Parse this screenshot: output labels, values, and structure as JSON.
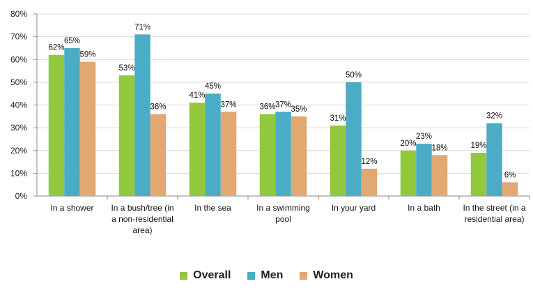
{
  "chart_data": {
    "type": "bar",
    "categories": [
      [
        "In a shower"
      ],
      [
        "In a bush/tree (in",
        "a non-residential",
        "area)"
      ],
      [
        "In the sea"
      ],
      [
        "In a swimming",
        "pool"
      ],
      [
        "In your yard"
      ],
      [
        "In a bath"
      ],
      [
        "In the street (in a",
        "residential area)"
      ]
    ],
    "series": [
      {
        "name": "Overall",
        "color": "#92c83e",
        "values": [
          62,
          53,
          41,
          36,
          31,
          20,
          19
        ]
      },
      {
        "name": "Men",
        "color": "#4bacc6",
        "values": [
          65,
          71,
          45,
          37,
          50,
          23,
          32
        ]
      },
      {
        "name": "Women",
        "color": "#e2a871",
        "values": [
          59,
          36,
          37,
          35,
          12,
          18,
          6
        ]
      }
    ],
    "ylim": [
      0,
      80
    ],
    "yticks": [
      "0%",
      "10%",
      "20%",
      "30%",
      "40%",
      "50%",
      "60%",
      "70%",
      "80%"
    ],
    "value_suffix": "%",
    "grid": true,
    "legend_position": "bottom"
  }
}
